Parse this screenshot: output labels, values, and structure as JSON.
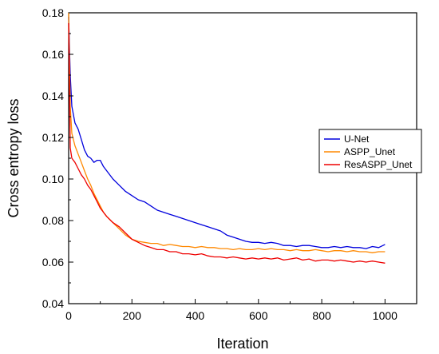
{
  "chart_data": {
    "type": "line",
    "title": "",
    "xlabel": "Iteration",
    "ylabel": "Cross entropy loss",
    "xlim": [
      0,
      1100
    ],
    "ylim": [
      0.04,
      0.18
    ],
    "xticks": [
      0,
      200,
      400,
      600,
      800,
      1000
    ],
    "xtick_labels": [
      "0",
      "200",
      "400",
      "600",
      "800",
      "1000"
    ],
    "yticks": [
      0.04,
      0.06,
      0.08,
      0.1,
      0.12,
      0.14,
      0.16,
      0.18
    ],
    "ytick_labels": [
      "0.04",
      "0.06",
      "0.08",
      "0.10",
      "0.12",
      "0.14",
      "0.16",
      "0.18"
    ],
    "grid": false,
    "legend_position": "right",
    "x": [
      0,
      5,
      10,
      20,
      30,
      40,
      50,
      60,
      70,
      80,
      90,
      100,
      110,
      120,
      140,
      160,
      180,
      200,
      220,
      240,
      260,
      280,
      300,
      320,
      340,
      360,
      380,
      400,
      420,
      440,
      460,
      480,
      500,
      520,
      540,
      560,
      580,
      600,
      620,
      640,
      660,
      680,
      700,
      720,
      740,
      760,
      780,
      800,
      820,
      840,
      860,
      880,
      900,
      920,
      940,
      960,
      980,
      1000
    ],
    "series": [
      {
        "name": "U-Net",
        "color": "#0000dd",
        "values": [
          0.178,
          0.15,
          0.135,
          0.127,
          0.124,
          0.119,
          0.114,
          0.111,
          0.11,
          0.108,
          0.109,
          0.109,
          0.106,
          0.104,
          0.1,
          0.097,
          0.094,
          0.092,
          0.09,
          0.089,
          0.087,
          0.085,
          0.084,
          0.083,
          0.082,
          0.081,
          0.08,
          0.079,
          0.078,
          0.077,
          0.076,
          0.075,
          0.073,
          0.072,
          0.071,
          0.07,
          0.0695,
          0.0695,
          0.069,
          0.0695,
          0.069,
          0.068,
          0.068,
          0.0675,
          0.068,
          0.068,
          0.0675,
          0.067,
          0.067,
          0.0675,
          0.067,
          0.0675,
          0.067,
          0.067,
          0.0665,
          0.0675,
          0.067,
          0.0685
        ]
      },
      {
        "name": "ASPP_Unet",
        "color": "#ff8800",
        "values": [
          0.18,
          0.135,
          0.122,
          0.116,
          0.112,
          0.108,
          0.104,
          0.1,
          0.097,
          0.093,
          0.09,
          0.087,
          0.084,
          0.082,
          0.079,
          0.076,
          0.073,
          0.071,
          0.07,
          0.0695,
          0.069,
          0.069,
          0.068,
          0.0685,
          0.068,
          0.0675,
          0.0675,
          0.067,
          0.0675,
          0.067,
          0.067,
          0.0665,
          0.0665,
          0.066,
          0.0665,
          0.066,
          0.066,
          0.0665,
          0.066,
          0.0665,
          0.066,
          0.066,
          0.0655,
          0.066,
          0.0655,
          0.0655,
          0.066,
          0.0655,
          0.065,
          0.0655,
          0.0655,
          0.065,
          0.0655,
          0.065,
          0.065,
          0.0645,
          0.065,
          0.065
        ]
      },
      {
        "name": "ResASPP_Unet",
        "color": "#ee0000",
        "values": [
          0.175,
          0.115,
          0.11,
          0.108,
          0.105,
          0.102,
          0.1,
          0.097,
          0.095,
          0.092,
          0.089,
          0.086,
          0.084,
          0.082,
          0.079,
          0.077,
          0.074,
          0.071,
          0.0695,
          0.068,
          0.067,
          0.066,
          0.066,
          0.065,
          0.065,
          0.064,
          0.064,
          0.0635,
          0.064,
          0.063,
          0.0625,
          0.0625,
          0.062,
          0.0625,
          0.062,
          0.0615,
          0.062,
          0.0615,
          0.062,
          0.0615,
          0.062,
          0.061,
          0.0615,
          0.062,
          0.061,
          0.0615,
          0.0605,
          0.061,
          0.061,
          0.0605,
          0.061,
          0.0605,
          0.06,
          0.0605,
          0.06,
          0.0605,
          0.06,
          0.0595
        ]
      }
    ]
  }
}
